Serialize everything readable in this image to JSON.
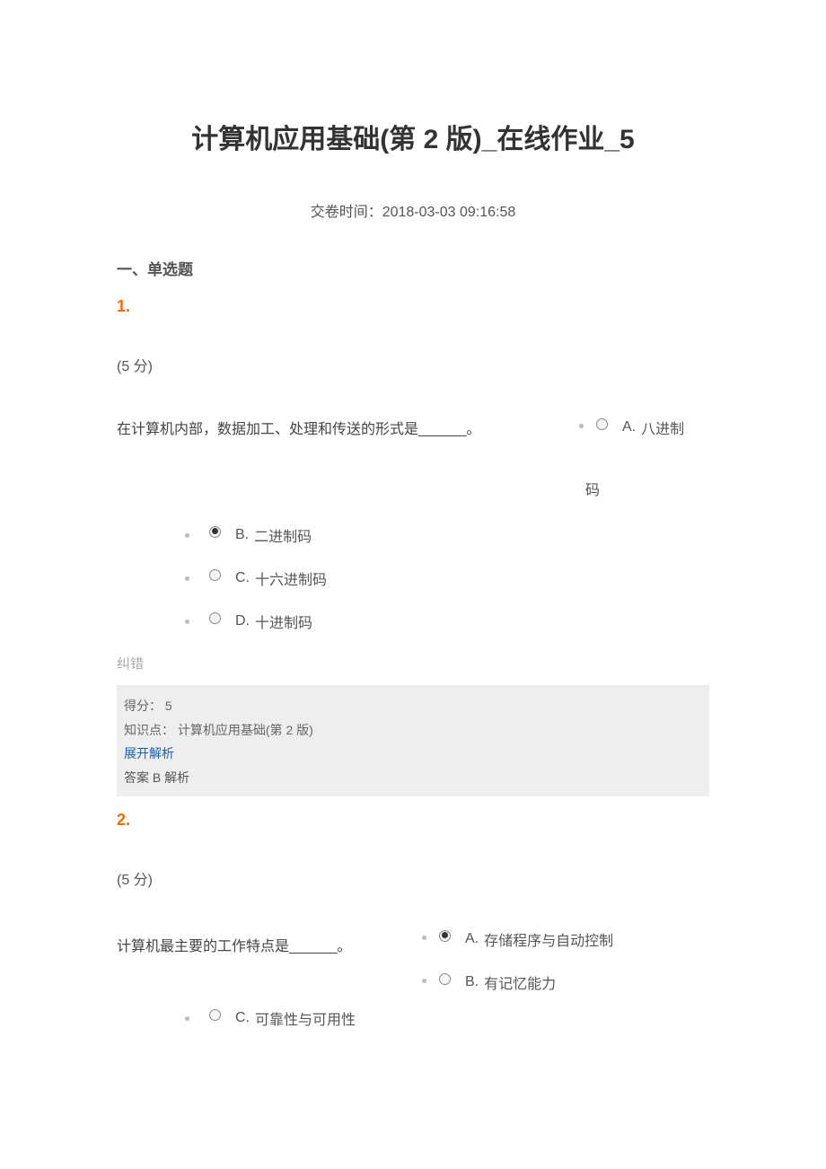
{
  "page": {
    "title": "计算机应用基础(第 2 版)_在线作业_5",
    "submit_time_label": "交卷时间：2018-03-03 09:16:58",
    "section_heading": "一、单选题",
    "correction_label": "纠错"
  },
  "q1": {
    "number": "1.",
    "points": "(5 分)",
    "stem": "在计算机内部，数据加工、处理和传送的形式是______。",
    "optA_label": "A.",
    "optA_text": "八进制",
    "optA_sub": "码",
    "optB_label": "B.",
    "optB_text": "二进制码",
    "optC_label": "C.",
    "optC_text": "十六进制码",
    "optD_label": "D.",
    "optD_text": "十进制码",
    "meta": {
      "score": "得分： 5",
      "kp": "知识点： 计算机应用基础(第 2 版)",
      "expand": "展开解析",
      "answer": "答案 B  解析"
    }
  },
  "q2": {
    "number": "2.",
    "points": "(5 分)",
    "stem": "计算机最主要的工作特点是______。",
    "optA_label": "A.",
    "optA_text": "存储程序与自动控制",
    "optB_label": "B.",
    "optB_text": "有记忆能力",
    "optC_label": "C.",
    "optC_text": "可靠性与可用性"
  },
  "style": {
    "accent_color": "#ff6600",
    "link_color": "#1a5fb4",
    "metabox_bg": "#eeeeee",
    "body_bg": "#ffffff",
    "text_color": "#444444"
  }
}
